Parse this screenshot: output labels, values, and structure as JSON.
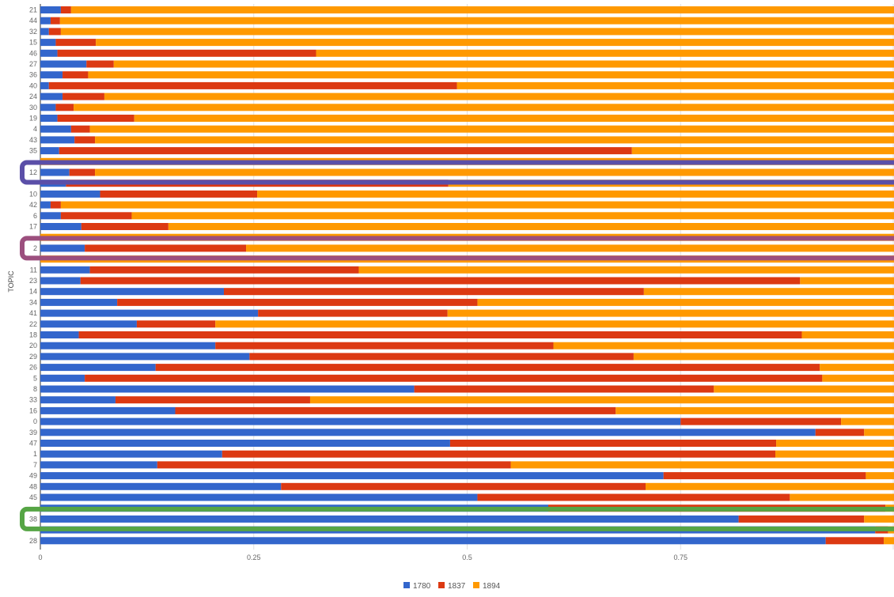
{
  "chart_data": {
    "type": "bar",
    "orientation": "horizontal",
    "stacked": true,
    "ylabel": "TOPIC",
    "xlim": [
      0,
      1
    ],
    "x_ticks": [
      "0",
      "0.25",
      "0.5",
      "0.75"
    ],
    "grid": "vertical",
    "legend_position": "bottom",
    "colors": [
      "#3366cc",
      "#dc3912",
      "#ff9900"
    ],
    "categories": [
      "21",
      "44",
      "32",
      "15",
      "46",
      "27",
      "36",
      "40",
      "24",
      "30",
      "19",
      "4",
      "43",
      "35",
      "",
      "12",
      "",
      "10",
      "42",
      "6",
      "17",
      "",
      "2",
      "",
      "11",
      "23",
      "14",
      "34",
      "41",
      "22",
      "18",
      "20",
      "29",
      "26",
      "5",
      "8",
      "33",
      "16",
      "0",
      "39",
      "47",
      "1",
      "7",
      "49",
      "48",
      "45",
      "",
      "38",
      "",
      "28"
    ],
    "series": [
      {
        "name": "1780",
        "values": [
          0.024,
          0.012,
          0.01,
          0.018,
          0.02,
          0.054,
          0.026,
          0.01,
          0.026,
          0.018,
          0.02,
          0.036,
          0.04,
          0.022,
          0.0,
          0.034,
          0.03,
          0.07,
          0.012,
          0.024,
          0.048,
          0.0,
          0.052,
          0.0,
          0.058,
          0.047,
          0.215,
          0.09,
          0.255,
          0.113,
          0.045,
          0.205,
          0.245,
          0.135,
          0.052,
          0.438,
          0.088,
          0.158,
          0.75,
          0.908,
          0.48,
          0.213,
          0.137,
          0.73,
          0.282,
          0.512,
          0.595,
          0.818,
          0.978,
          0.92
        ]
      },
      {
        "name": "1837",
        "values": [
          0.012,
          0.011,
          0.014,
          0.047,
          0.303,
          0.032,
          0.03,
          0.478,
          0.049,
          0.021,
          0.09,
          0.022,
          0.024,
          0.671,
          0.0,
          0.03,
          0.448,
          0.184,
          0.012,
          0.083,
          0.102,
          0.0,
          0.189,
          0.0,
          0.315,
          0.843,
          0.492,
          0.422,
          0.222,
          0.092,
          0.847,
          0.396,
          0.45,
          0.778,
          0.864,
          0.351,
          0.228,
          0.516,
          0.188,
          0.057,
          0.382,
          0.648,
          0.414,
          0.237,
          0.427,
          0.366,
          0.395,
          0.147,
          0.015,
          0.068
        ]
      },
      {
        "name": "1894",
        "values": [
          0.964,
          0.977,
          0.976,
          0.935,
          0.677,
          0.914,
          0.944,
          0.512,
          0.925,
          0.961,
          0.89,
          0.942,
          0.936,
          0.307,
          1.0,
          0.936,
          0.522,
          0.746,
          0.976,
          0.893,
          0.85,
          1.0,
          0.759,
          1.0,
          0.627,
          0.11,
          0.293,
          0.488,
          0.523,
          0.795,
          0.108,
          0.399,
          0.305,
          0.087,
          0.084,
          0.211,
          0.684,
          0.326,
          0.062,
          0.035,
          0.138,
          0.139,
          0.449,
          0.033,
          0.291,
          0.122,
          0.01,
          0.035,
          0.007,
          0.012
        ]
      }
    ]
  }
}
